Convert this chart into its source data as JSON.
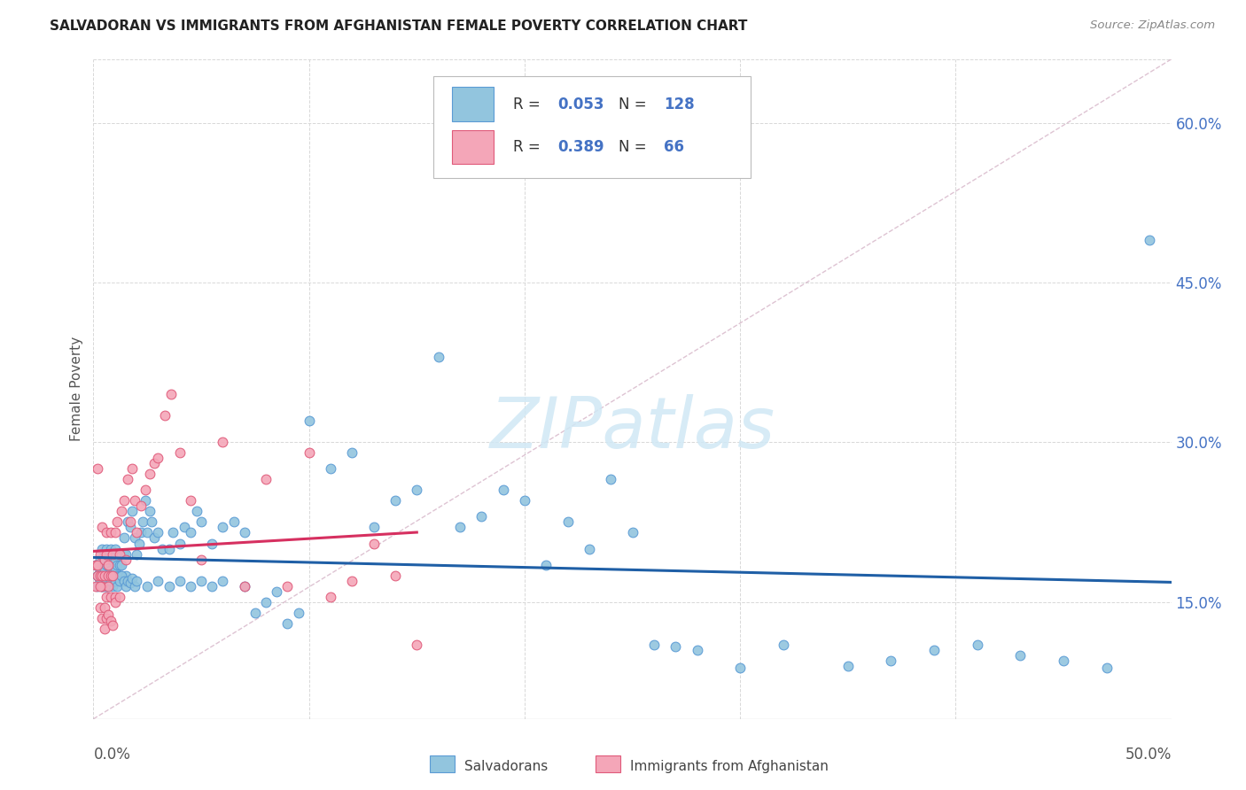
{
  "title": "SALVADORAN VS IMMIGRANTS FROM AFGHANISTAN FEMALE POVERTY CORRELATION CHART",
  "source": "Source: ZipAtlas.com",
  "ylabel": "Female Poverty",
  "ytick_values": [
    0.15,
    0.3,
    0.45,
    0.6
  ],
  "ytick_labels": [
    "15.0%",
    "30.0%",
    "45.0%",
    "60.0%"
  ],
  "xlim": [
    0.0,
    0.5
  ],
  "ylim": [
    0.04,
    0.66
  ],
  "salvadorans_color": "#92c5de",
  "salvadorans_edge": "#5b9bd5",
  "salvadorans_trend": "#1f5fa6",
  "afghans_color": "#f4a6b8",
  "afghans_edge": "#e05a7a",
  "afghans_trend": "#d63060",
  "diagonal_color": "#d0aac0",
  "grid_color": "#d8d8d8",
  "background_color": "#ffffff",
  "watermark": "ZIPatlas",
  "watermark_color": "#d0e8f5",
  "sal_x": [
    0.001,
    0.002,
    0.002,
    0.003,
    0.003,
    0.003,
    0.004,
    0.004,
    0.004,
    0.005,
    0.005,
    0.005,
    0.006,
    0.006,
    0.006,
    0.006,
    0.007,
    0.007,
    0.007,
    0.008,
    0.008,
    0.008,
    0.008,
    0.009,
    0.009,
    0.009,
    0.01,
    0.01,
    0.01,
    0.01,
    0.011,
    0.011,
    0.012,
    0.012,
    0.013,
    0.013,
    0.014,
    0.014,
    0.015,
    0.015,
    0.016,
    0.017,
    0.018,
    0.019,
    0.02,
    0.021,
    0.022,
    0.023,
    0.024,
    0.025,
    0.026,
    0.027,
    0.028,
    0.03,
    0.032,
    0.035,
    0.037,
    0.04,
    0.042,
    0.045,
    0.048,
    0.05,
    0.055,
    0.06,
    0.065,
    0.07,
    0.075,
    0.08,
    0.085,
    0.09,
    0.095,
    0.1,
    0.11,
    0.12,
    0.13,
    0.14,
    0.15,
    0.16,
    0.17,
    0.18,
    0.19,
    0.2,
    0.21,
    0.22,
    0.23,
    0.24,
    0.25,
    0.26,
    0.27,
    0.28,
    0.3,
    0.32,
    0.35,
    0.37,
    0.39,
    0.41,
    0.43,
    0.45,
    0.47,
    0.49,
    0.002,
    0.003,
    0.004,
    0.005,
    0.006,
    0.007,
    0.008,
    0.009,
    0.01,
    0.011,
    0.012,
    0.013,
    0.014,
    0.015,
    0.016,
    0.017,
    0.018,
    0.019,
    0.02,
    0.025,
    0.03,
    0.035,
    0.04,
    0.045,
    0.05,
    0.055,
    0.06,
    0.07
  ],
  "sal_y": [
    0.185,
    0.175,
    0.165,
    0.17,
    0.18,
    0.19,
    0.165,
    0.175,
    0.2,
    0.17,
    0.18,
    0.195,
    0.165,
    0.175,
    0.185,
    0.2,
    0.165,
    0.175,
    0.185,
    0.17,
    0.18,
    0.19,
    0.2,
    0.165,
    0.175,
    0.19,
    0.17,
    0.18,
    0.19,
    0.2,
    0.175,
    0.185,
    0.175,
    0.185,
    0.175,
    0.185,
    0.195,
    0.21,
    0.175,
    0.195,
    0.225,
    0.22,
    0.235,
    0.21,
    0.195,
    0.205,
    0.215,
    0.225,
    0.245,
    0.215,
    0.235,
    0.225,
    0.21,
    0.215,
    0.2,
    0.2,
    0.215,
    0.205,
    0.22,
    0.215,
    0.235,
    0.225,
    0.205,
    0.22,
    0.225,
    0.215,
    0.14,
    0.15,
    0.16,
    0.13,
    0.14,
    0.32,
    0.275,
    0.29,
    0.22,
    0.245,
    0.255,
    0.38,
    0.22,
    0.23,
    0.255,
    0.245,
    0.185,
    0.225,
    0.2,
    0.265,
    0.215,
    0.11,
    0.108,
    0.105,
    0.088,
    0.11,
    0.09,
    0.095,
    0.105,
    0.11,
    0.1,
    0.095,
    0.088,
    0.49,
    0.175,
    0.17,
    0.165,
    0.165,
    0.17,
    0.175,
    0.17,
    0.175,
    0.17,
    0.165,
    0.17,
    0.175,
    0.17,
    0.165,
    0.17,
    0.168,
    0.172,
    0.165,
    0.17,
    0.165,
    0.17,
    0.165,
    0.17,
    0.165,
    0.17,
    0.165,
    0.17,
    0.165
  ],
  "afg_x": [
    0.001,
    0.001,
    0.002,
    0.002,
    0.002,
    0.003,
    0.003,
    0.003,
    0.004,
    0.004,
    0.004,
    0.005,
    0.005,
    0.005,
    0.006,
    0.006,
    0.006,
    0.007,
    0.007,
    0.007,
    0.008,
    0.008,
    0.008,
    0.009,
    0.009,
    0.01,
    0.01,
    0.011,
    0.012,
    0.013,
    0.014,
    0.015,
    0.016,
    0.017,
    0.018,
    0.019,
    0.02,
    0.022,
    0.024,
    0.026,
    0.028,
    0.03,
    0.033,
    0.036,
    0.04,
    0.045,
    0.05,
    0.06,
    0.07,
    0.08,
    0.09,
    0.1,
    0.11,
    0.12,
    0.13,
    0.14,
    0.15,
    0.003,
    0.004,
    0.005,
    0.006,
    0.007,
    0.008,
    0.009,
    0.01,
    0.012
  ],
  "afg_y": [
    0.165,
    0.185,
    0.275,
    0.175,
    0.185,
    0.145,
    0.195,
    0.175,
    0.165,
    0.22,
    0.175,
    0.145,
    0.175,
    0.19,
    0.155,
    0.195,
    0.215,
    0.165,
    0.185,
    0.175,
    0.155,
    0.215,
    0.175,
    0.175,
    0.195,
    0.155,
    0.215,
    0.225,
    0.195,
    0.235,
    0.245,
    0.19,
    0.265,
    0.225,
    0.275,
    0.245,
    0.215,
    0.24,
    0.255,
    0.27,
    0.28,
    0.285,
    0.325,
    0.345,
    0.29,
    0.245,
    0.19,
    0.3,
    0.165,
    0.265,
    0.165,
    0.29,
    0.155,
    0.17,
    0.205,
    0.175,
    0.11,
    0.165,
    0.135,
    0.125,
    0.135,
    0.138,
    0.132,
    0.128,
    0.15,
    0.155
  ]
}
